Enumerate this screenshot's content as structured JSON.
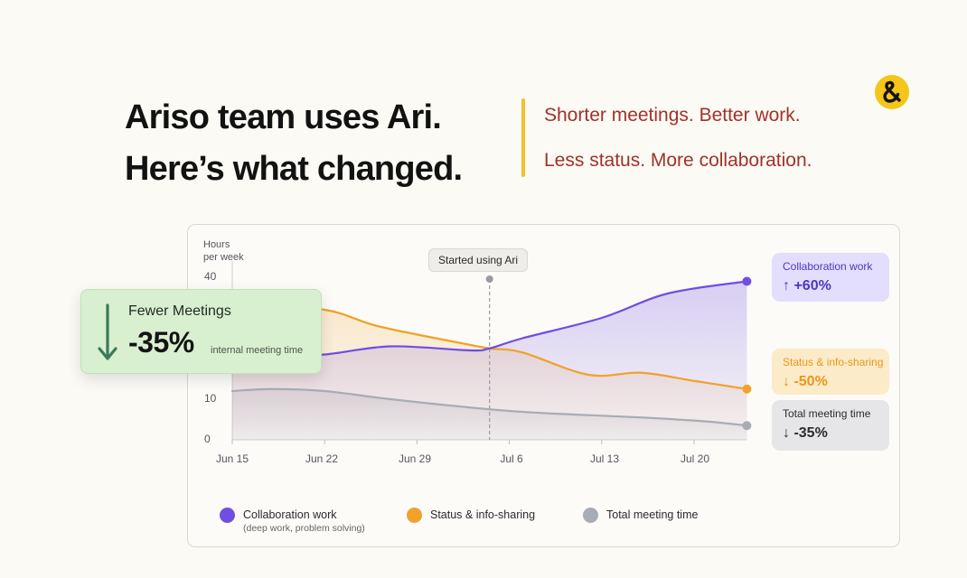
{
  "header": {
    "title_line1": "Ariso team uses Ari.",
    "title_line2": "Here’s what changed.",
    "tagline1": "Shorter meetings. Better work.",
    "tagline2": "Less status. More collaboration."
  },
  "logo": {
    "icon": "ampersand-logo-icon"
  },
  "colors": {
    "collaboration": "#6f4ee0",
    "status": "#f0a22a",
    "meeting": "#a8acb4",
    "tagline": "#a1322a",
    "accent": "#f5c518"
  },
  "chart_data": {
    "type": "area",
    "ylabel_line1": "Hours",
    "ylabel_line2": "per week",
    "y_ticks": [
      "40",
      "10",
      "0"
    ],
    "x_ticks": [
      "Jun 15",
      "Jun 22",
      "Jun 29",
      "Jul 6",
      "Jul 13",
      "Jul 20"
    ],
    "ylim": [
      0,
      40
    ],
    "x_days": [
      0,
      7,
      14,
      21,
      28,
      35,
      39
    ],
    "series": [
      {
        "name": "Collaboration work",
        "key": "collab",
        "x": [
          0,
          3,
          7,
          12,
          18,
          19.5,
          22,
          28,
          33,
          39
        ],
        "values": [
          20,
          20.5,
          21,
          23,
          22,
          22.5,
          25,
          30,
          36,
          39
        ]
      },
      {
        "name": "Status & info-sharing",
        "key": "status",
        "x": [
          0,
          7,
          11,
          17,
          19.5,
          22,
          27,
          31,
          35,
          39
        ],
        "values": [
          34,
          32,
          28,
          24,
          22.5,
          21.5,
          16,
          16.5,
          14.5,
          12.5
        ]
      },
      {
        "name": "Total meeting time",
        "key": "meeting",
        "x": [
          0,
          3,
          7,
          12,
          19.5,
          24,
          31,
          36,
          39
        ],
        "values": [
          12,
          12.5,
          12,
          10,
          7.5,
          6.5,
          5.5,
          4.5,
          3.5
        ]
      }
    ],
    "marker": {
      "x": 19.5,
      "label": "Started using Ari"
    },
    "annotations": [
      {
        "title": "Collaboration work",
        "value": "↑ +60%"
      },
      {
        "title": "Status & info-sharing",
        "value": "↓ -50%"
      },
      {
        "title": "Total meeting time",
        "value": "↓ -35%"
      }
    ]
  },
  "legend": [
    {
      "label": "Collaboration work",
      "sub": "(deep work, problem solving)"
    },
    {
      "label": "Status & info-sharing",
      "sub": ""
    },
    {
      "label": "Total meeting time",
      "sub": ""
    }
  ],
  "fewer_card": {
    "title": "Fewer Meetings",
    "value": "-35%",
    "subtitle": "internal meeting time"
  }
}
